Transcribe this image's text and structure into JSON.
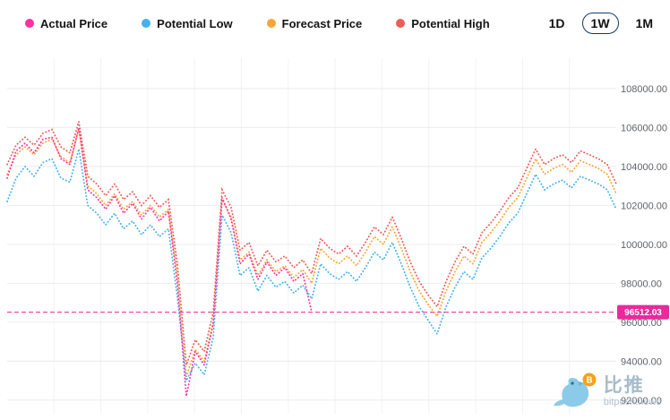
{
  "legend": {
    "items": [
      {
        "label": "Actual Price",
        "color": "#ff2fa4"
      },
      {
        "label": "Potential Low",
        "color": "#45b2ef"
      },
      {
        "label": "Forecast Price",
        "color": "#f7a636"
      },
      {
        "label": "Potential High",
        "color": "#f25a5a"
      }
    ]
  },
  "range_buttons": [
    {
      "label": "1D",
      "selected": false
    },
    {
      "label": "1W",
      "selected": true
    },
    {
      "label": "1M",
      "selected": false
    }
  ],
  "watermark": {
    "title": "比推",
    "subtitle": "bitpush.news"
  },
  "chart_data": {
    "type": "line",
    "style": "dotted",
    "grid": true,
    "legend_position": "top",
    "ylim": [
      91300,
      109100
    ],
    "yticks": [
      {
        "value": 108000,
        "label": "108000.00"
      },
      {
        "value": 106000,
        "label": "106000.00"
      },
      {
        "value": 104000,
        "label": "104000.00"
      },
      {
        "value": 102000,
        "label": "102000.00"
      },
      {
        "value": 100000,
        "label": "100000.00"
      },
      {
        "value": 98000,
        "label": "98000.00"
      },
      {
        "value": 96000,
        "label": "96000.00"
      },
      {
        "value": 94000,
        "label": "94000.00"
      },
      {
        "value": 92000,
        "label": "92000.00"
      }
    ],
    "current_price": {
      "value": 96512.03,
      "label": "96512.03",
      "color": "#e82a9b"
    },
    "series": [
      {
        "name": "Actual Price",
        "color": "#ff2fa4",
        "values": [
          103400,
          104800,
          105200,
          104700,
          105400,
          105500,
          104400,
          104100,
          106000,
          102800,
          102400,
          101800,
          102500,
          101600,
          102100,
          101300,
          101900,
          101200,
          101700,
          98000,
          92200,
          94500,
          93800,
          95900,
          102400,
          101300,
          99000,
          99500,
          98200,
          99100,
          98400,
          98800,
          98100,
          98500,
          96512.03,
          null,
          null,
          null,
          null,
          null,
          null,
          null,
          null,
          null,
          null,
          null,
          null,
          null,
          null,
          null,
          null,
          null,
          null,
          null,
          null,
          null,
          null,
          null,
          null,
          null,
          null,
          null,
          null,
          null,
          null,
          null,
          null,
          null,
          null
        ]
      },
      {
        "name": "Potential Low",
        "color": "#45b2ef",
        "values": [
          102200,
          103400,
          104000,
          103500,
          104200,
          104400,
          103400,
          103200,
          104900,
          102000,
          101600,
          101000,
          101600,
          100800,
          101200,
          100500,
          101000,
          100400,
          100800,
          97300,
          93000,
          93900,
          93300,
          95200,
          101500,
          100600,
          98400,
          98800,
          97600,
          98400,
          97800,
          98100,
          97500,
          97900,
          97200,
          99000,
          98500,
          98200,
          98600,
          98100,
          98800,
          99600,
          99200,
          100100,
          99000,
          97800,
          96800,
          96100,
          95400,
          96800,
          97800,
          98600,
          98200,
          99300,
          99800,
          100400,
          101100,
          101600,
          102600,
          103600,
          102800,
          103100,
          103300,
          102900,
          103500,
          103300,
          103100,
          102800,
          101800
        ]
      },
      {
        "name": "Forecast Price",
        "color": "#f7a636",
        "values": [
          103600,
          104600,
          105000,
          104600,
          105200,
          105400,
          104500,
          104200,
          105900,
          103000,
          102600,
          102000,
          102600,
          101800,
          102200,
          101500,
          102000,
          101400,
          101800,
          98500,
          93200,
          94600,
          94000,
          96000,
          102300,
          101400,
          99200,
          99600,
          98400,
          99200,
          98600,
          98900,
          98300,
          98700,
          98000,
          99800,
          99300,
          99000,
          99400,
          98900,
          99600,
          100400,
          100000,
          100900,
          99800,
          98600,
          97600,
          96900,
          96300,
          97600,
          98600,
          99400,
          99000,
          100100,
          100600,
          101200,
          101900,
          102400,
          103400,
          104400,
          103600,
          103900,
          104100,
          103700,
          104300,
          104100,
          103900,
          103600,
          102600
        ]
      },
      {
        "name": "Potential High",
        "color": "#f25a5a",
        "values": [
          104100,
          105100,
          105500,
          105100,
          105700,
          105900,
          105000,
          104700,
          106300,
          103500,
          103100,
          102500,
          103100,
          102300,
          102700,
          102000,
          102500,
          101900,
          102300,
          99000,
          93800,
          95100,
          94500,
          96500,
          102800,
          101900,
          99700,
          100100,
          98900,
          99700,
          99100,
          99400,
          98800,
          99200,
          98500,
          100300,
          99800,
          99500,
          99900,
          99400,
          100100,
          100900,
          100500,
          101400,
          100300,
          99100,
          98100,
          97400,
          96800,
          98100,
          99100,
          99900,
          99500,
          100600,
          101100,
          101700,
          102400,
          102900,
          103900,
          104900,
          104100,
          104400,
          104600,
          104200,
          104800,
          104600,
          104400,
          104100,
          103100
        ]
      }
    ]
  }
}
